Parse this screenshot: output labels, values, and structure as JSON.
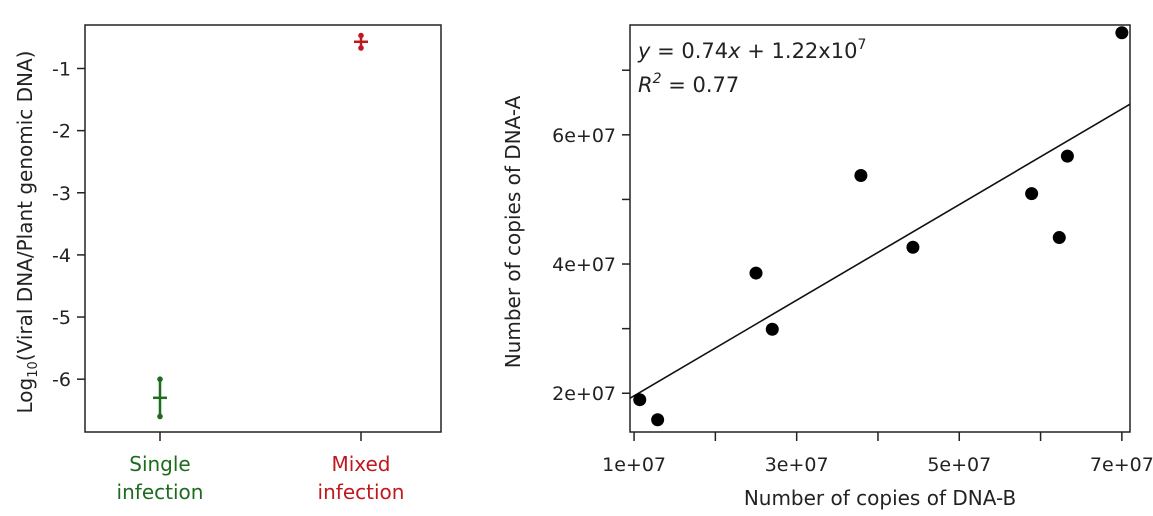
{
  "chart_data": [
    {
      "type": "scatter",
      "title": "",
      "xlabel": "",
      "ylabel_parts": {
        "prefix": "Log",
        "subscript": "10",
        "rest": "(Viral DNA/Plant genomic DNA)"
      },
      "ylim": [
        -6.85,
        -0.3
      ],
      "yticks": [
        -1,
        -2,
        -3,
        -4,
        -5,
        -6
      ],
      "categories": [
        "Single\ninfection",
        "Mixed\ninfection"
      ],
      "category_lines": [
        [
          "Single",
          "infection"
        ],
        [
          "Mixed",
          "infection"
        ]
      ],
      "category_colors": [
        "#1e6b1e",
        "#c0181f"
      ],
      "points": [
        {
          "category": "Single\ninfection",
          "mean": -6.3,
          "low": -6.6,
          "high": -6.0,
          "color": "#1e6b1e"
        },
        {
          "category": "Mixed\ninfection",
          "mean": -0.57,
          "low": -0.67,
          "high": -0.47,
          "color": "#c0181f"
        }
      ]
    },
    {
      "type": "scatter",
      "title": "",
      "xlabel": "Number of copies of DNA-B",
      "ylabel": "Number of copies of DNA-A",
      "xlim": [
        9500000,
        71000000
      ],
      "ylim": [
        14000000,
        77000000
      ],
      "xticks": [
        10000000,
        20000000,
        30000000,
        40000000,
        50000000,
        60000000,
        70000000
      ],
      "xtick_labels": [
        "1e+07",
        "",
        "3e+07",
        "",
        "5e+07",
        "",
        "7e+07"
      ],
      "yticks": [
        20000000,
        30000000,
        40000000,
        50000000,
        60000000,
        70000000
      ],
      "ytick_labels": [
        "2e+07",
        "",
        "4e+07",
        "",
        "6e+07",
        ""
      ],
      "x": [
        10700000,
        12900000,
        25000000,
        27000000,
        37900000,
        44300000,
        58900000,
        62300000,
        63300000,
        70000000
      ],
      "y": [
        19000000,
        15900000,
        38600000,
        29900000,
        53700000,
        42600000,
        50900000,
        44100000,
        56700000,
        75800000
      ],
      "fit": {
        "slope": 0.74,
        "intercept": 12200000
      },
      "annotation": {
        "eq_y": "y",
        "eq_mid": " = 0.74",
        "eq_x": "x",
        "eq_tail": " + 1.22x10",
        "eq_sup": "7",
        "r2_r": "R",
        "r2_sup": "2",
        "r2_tail": " = 0.77"
      }
    }
  ]
}
